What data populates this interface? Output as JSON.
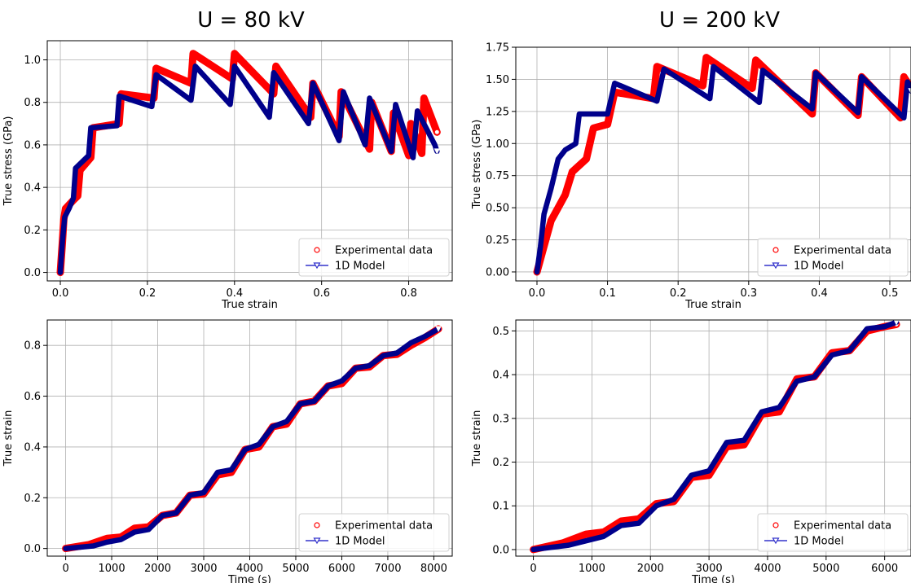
{
  "titles": {
    "left": "U = 80 kV",
    "right": "U = 200 kV"
  },
  "colors": {
    "experimental": "#ff0000",
    "model": "#00008b",
    "model_legend": "#3333cc",
    "grid": "#b0b0b0"
  },
  "legend": {
    "experimental": "Experimental data",
    "model": "1D Model"
  },
  "chart_data": [
    {
      "id": "stress-strain-80kv",
      "type": "line",
      "xlabel": "True strain",
      "ylabel": "True stress (GPa)",
      "xlim": [
        -0.03,
        0.9
      ],
      "ylim": [
        -0.04,
        1.09
      ],
      "xticks": [
        0.0,
        0.2,
        0.4,
        0.6,
        0.8
      ],
      "xtick_labels": [
        "0.0",
        "0.2",
        "0.4",
        "0.6",
        "0.8"
      ],
      "yticks": [
        0.0,
        0.2,
        0.4,
        0.6,
        0.8,
        1.0
      ],
      "ytick_labels": [
        "0.0",
        "0.2",
        "0.4",
        "0.6",
        "0.8",
        "1.0"
      ],
      "grid": true,
      "legend_position": "bottom-right",
      "series": [
        {
          "name": "Experimental data",
          "x": [
            0,
            0.005,
            0.008,
            0.012,
            0.03,
            0.04,
            0.045,
            0.07,
            0.075,
            0.135,
            0.14,
            0.215,
            0.22,
            0.3,
            0.305,
            0.395,
            0.4,
            0.49,
            0.495,
            0.575,
            0.58,
            0.64,
            0.645,
            0.71,
            0.715,
            0.76,
            0.765,
            0.8,
            0.805,
            0.83,
            0.835,
            0.865
          ],
          "y": [
            0.0,
            0.15,
            0.25,
            0.3,
            0.34,
            0.36,
            0.48,
            0.54,
            0.68,
            0.7,
            0.84,
            0.82,
            0.96,
            0.89,
            1.03,
            0.91,
            1.03,
            0.84,
            0.97,
            0.73,
            0.89,
            0.64,
            0.85,
            0.58,
            0.8,
            0.57,
            0.75,
            0.55,
            0.7,
            0.56,
            0.82,
            0.66
          ]
        },
        {
          "name": "1D Model",
          "x": [
            0,
            0.005,
            0.01,
            0.02,
            0.03,
            0.035,
            0.065,
            0.07,
            0.13,
            0.135,
            0.21,
            0.22,
            0.3,
            0.31,
            0.39,
            0.4,
            0.48,
            0.49,
            0.57,
            0.58,
            0.64,
            0.65,
            0.7,
            0.71,
            0.76,
            0.77,
            0.81,
            0.82,
            0.86,
            0.865
          ],
          "y": [
            0.0,
            0.15,
            0.26,
            0.3,
            0.35,
            0.49,
            0.55,
            0.68,
            0.69,
            0.83,
            0.78,
            0.93,
            0.81,
            0.97,
            0.79,
            0.97,
            0.73,
            0.94,
            0.7,
            0.89,
            0.62,
            0.85,
            0.6,
            0.82,
            0.57,
            0.79,
            0.54,
            0.76,
            0.6,
            0.57
          ]
        }
      ]
    },
    {
      "id": "stress-strain-200kv",
      "type": "line",
      "xlabel": "True strain",
      "ylabel": "True stress (GPa)",
      "xlim": [
        -0.03,
        0.53
      ],
      "ylim": [
        -0.07,
        1.75
      ],
      "xticks": [
        0.0,
        0.1,
        0.2,
        0.3,
        0.4,
        0.5
      ],
      "xtick_labels": [
        "0.0",
        "0.1",
        "0.2",
        "0.3",
        "0.4",
        "0.5"
      ],
      "yticks": [
        0.0,
        0.25,
        0.5,
        0.75,
        1.0,
        1.25,
        1.5,
        1.75
      ],
      "ytick_labels": [
        "0.00",
        "0.25",
        "0.50",
        "0.75",
        "1.00",
        "1.25",
        "1.50",
        "1.75"
      ],
      "grid": true,
      "legend_position": "bottom-right",
      "series": [
        {
          "name": "Experimental data",
          "x": [
            0,
            0.005,
            0.01,
            0.02,
            0.03,
            0.04,
            0.05,
            0.07,
            0.08,
            0.1,
            0.11,
            0.165,
            0.17,
            0.235,
            0.24,
            0.305,
            0.31,
            0.39,
            0.395,
            0.455,
            0.46,
            0.515,
            0.52,
            0.53
          ],
          "y": [
            0.0,
            0.1,
            0.2,
            0.4,
            0.5,
            0.6,
            0.78,
            0.88,
            1.12,
            1.15,
            1.4,
            1.35,
            1.6,
            1.45,
            1.67,
            1.43,
            1.65,
            1.23,
            1.55,
            1.22,
            1.52,
            1.2,
            1.52,
            1.43
          ]
        },
        {
          "name": "1D Model",
          "x": [
            0,
            0.005,
            0.01,
            0.02,
            0.03,
            0.04,
            0.055,
            0.06,
            0.1,
            0.11,
            0.17,
            0.18,
            0.245,
            0.25,
            0.315,
            0.32,
            0.39,
            0.395,
            0.455,
            0.46,
            0.52,
            0.525,
            0.53
          ],
          "y": [
            0.0,
            0.2,
            0.45,
            0.65,
            0.88,
            0.95,
            1.0,
            1.23,
            1.23,
            1.47,
            1.33,
            1.58,
            1.35,
            1.6,
            1.32,
            1.57,
            1.27,
            1.55,
            1.24,
            1.52,
            1.2,
            1.48,
            1.41
          ]
        }
      ]
    },
    {
      "id": "strain-time-80kv",
      "type": "line",
      "xlabel": "Time (s)",
      "ylabel": "True strain",
      "xlim": [
        -400,
        8400
      ],
      "ylim": [
        -0.03,
        0.9
      ],
      "xticks": [
        0,
        1000,
        2000,
        3000,
        4000,
        5000,
        6000,
        7000,
        8000
      ],
      "xtick_labels": [
        "0",
        "1000",
        "2000",
        "3000",
        "4000",
        "5000",
        "6000",
        "7000",
        "8000"
      ],
      "yticks": [
        0.0,
        0.2,
        0.4,
        0.6,
        0.8
      ],
      "ytick_labels": [
        "0.0",
        "0.2",
        "0.4",
        "0.6",
        "0.8"
      ],
      "grid": true,
      "legend_position": "bottom-right",
      "series": [
        {
          "name": "Experimental data",
          "x": [
            0,
            500,
            900,
            1200,
            1500,
            1800,
            2100,
            2400,
            2700,
            3000,
            3300,
            3600,
            3900,
            4200,
            4500,
            4800,
            5100,
            5400,
            5700,
            6000,
            6300,
            6600,
            6900,
            7200,
            7500,
            7800,
            8100
          ],
          "y": [
            0.0,
            0.015,
            0.04,
            0.045,
            0.08,
            0.085,
            0.13,
            0.14,
            0.21,
            0.215,
            0.29,
            0.3,
            0.39,
            0.4,
            0.48,
            0.49,
            0.57,
            0.58,
            0.64,
            0.65,
            0.71,
            0.715,
            0.76,
            0.765,
            0.8,
            0.83,
            0.865
          ]
        },
        {
          "name": "1D Model",
          "x": [
            0,
            600,
            900,
            1200,
            1500,
            1800,
            2100,
            2400,
            2700,
            3000,
            3300,
            3600,
            3900,
            4200,
            4500,
            4800,
            5100,
            5400,
            5700,
            6000,
            6300,
            6600,
            6900,
            7200,
            7500,
            7800,
            8100
          ],
          "y": [
            0.0,
            0.01,
            0.025,
            0.035,
            0.065,
            0.075,
            0.13,
            0.14,
            0.21,
            0.22,
            0.3,
            0.31,
            0.39,
            0.41,
            0.48,
            0.5,
            0.57,
            0.58,
            0.64,
            0.66,
            0.71,
            0.72,
            0.76,
            0.77,
            0.81,
            0.835,
            0.865
          ]
        }
      ]
    },
    {
      "id": "strain-time-200kv",
      "type": "line",
      "xlabel": "Time (s)",
      "ylabel": "True strain",
      "xlim": [
        -300,
        6450
      ],
      "ylim": [
        -0.015,
        0.525
      ],
      "xticks": [
        0,
        1000,
        2000,
        3000,
        4000,
        5000,
        6000
      ],
      "xtick_labels": [
        "0",
        "1000",
        "2000",
        "3000",
        "4000",
        "5000",
        "6000"
      ],
      "yticks": [
        0.0,
        0.1,
        0.2,
        0.3,
        0.4,
        0.5
      ],
      "ytick_labels": [
        "0.0",
        "0.1",
        "0.2",
        "0.3",
        "0.4",
        "0.5"
      ],
      "grid": true,
      "legend_position": "bottom-right",
      "series": [
        {
          "name": "Experimental data",
          "x": [
            0,
            500,
            900,
            1200,
            1500,
            1800,
            2100,
            2400,
            2700,
            3000,
            3300,
            3600,
            3900,
            4200,
            4500,
            4800,
            5100,
            5400,
            5700,
            6000,
            6200
          ],
          "y": [
            0.0,
            0.015,
            0.035,
            0.04,
            0.065,
            0.07,
            0.105,
            0.11,
            0.165,
            0.17,
            0.235,
            0.24,
            0.31,
            0.315,
            0.39,
            0.395,
            0.45,
            0.455,
            0.5,
            0.51,
            0.515
          ]
        },
        {
          "name": "1D Model",
          "x": [
            0,
            600,
            900,
            1200,
            1500,
            1800,
            2100,
            2400,
            2700,
            3000,
            3300,
            3600,
            3900,
            4200,
            4500,
            4800,
            5100,
            5400,
            5700,
            6000,
            6200
          ],
          "y": [
            0.0,
            0.01,
            0.02,
            0.03,
            0.055,
            0.06,
            0.1,
            0.115,
            0.17,
            0.18,
            0.245,
            0.25,
            0.315,
            0.325,
            0.385,
            0.395,
            0.445,
            0.455,
            0.505,
            0.51,
            0.52
          ]
        }
      ]
    }
  ]
}
